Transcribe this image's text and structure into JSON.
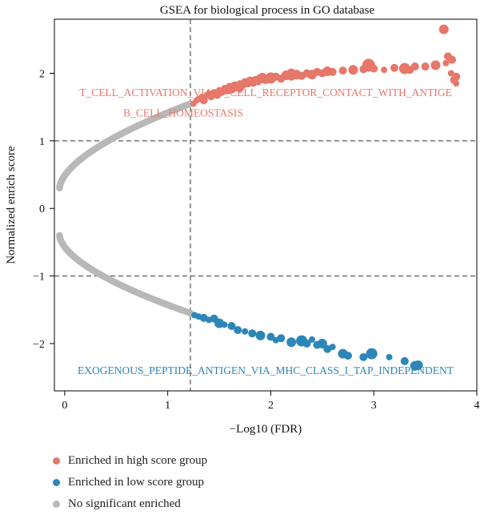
{
  "chart_data": {
    "type": "scatter",
    "title": "GSEA for biological process in GO database",
    "xlabel": "−Log10 (FDR)",
    "ylabel": "Normalized enrich score",
    "xlim": [
      -0.1,
      4.0
    ],
    "ylim": [
      -2.7,
      2.8
    ],
    "xticks": [
      0,
      1,
      2,
      3,
      4
    ],
    "yticks": [
      -2,
      -1,
      0,
      1,
      2
    ],
    "ytick_labels": [
      "−2",
      "−1",
      "0",
      "1",
      "2"
    ],
    "threshold_x": 1.22,
    "threshold_y": [
      -1.0,
      1.0
    ],
    "grid": false,
    "legend_position": "bottom-left",
    "annotations": [
      {
        "text": "T_CELL_ACTIVATION_VIA_T_CELL_RECEPTOR_CONTACT_WITH_ANTIGE",
        "x": 1.95,
        "y": 1.66,
        "series": "high"
      },
      {
        "text": "B_CELL_HOMEOSTASIS",
        "x": 1.15,
        "y": 1.36,
        "series": "high"
      },
      {
        "text": "EXOGENOUS_PEPTIDE_ANTIGEN_VIA_MHC_CLASS_I_TAP_INDEPENDENT",
        "x": 1.95,
        "y": -2.45,
        "series": "low"
      }
    ],
    "series": [
      {
        "name": "Enriched in high score group",
        "key": "high",
        "color": "#e6776b",
        "points": [
          [
            1.25,
            1.55
          ],
          [
            1.28,
            1.6
          ],
          [
            1.3,
            1.62
          ],
          [
            1.33,
            1.65
          ],
          [
            1.35,
            1.6
          ],
          [
            1.38,
            1.68
          ],
          [
            1.4,
            1.7
          ],
          [
            1.42,
            1.66
          ],
          [
            1.45,
            1.72
          ],
          [
            1.48,
            1.68
          ],
          [
            1.5,
            1.75
          ],
          [
            1.53,
            1.73
          ],
          [
            1.55,
            1.78
          ],
          [
            1.58,
            1.76
          ],
          [
            1.6,
            1.8
          ],
          [
            1.63,
            1.75
          ],
          [
            1.65,
            1.82
          ],
          [
            1.68,
            1.8
          ],
          [
            1.7,
            1.85
          ],
          [
            1.73,
            1.83
          ],
          [
            1.75,
            1.87
          ],
          [
            1.78,
            1.84
          ],
          [
            1.8,
            1.88
          ],
          [
            1.83,
            1.86
          ],
          [
            1.85,
            1.9
          ],
          [
            1.88,
            1.87
          ],
          [
            1.9,
            1.92
          ],
          [
            1.95,
            1.9
          ],
          [
            2.0,
            1.93
          ],
          [
            2.05,
            1.95
          ],
          [
            2.1,
            1.92
          ],
          [
            2.15,
            1.97
          ],
          [
            2.2,
            1.95
          ],
          [
            2.25,
            1.98
          ],
          [
            2.3,
            1.96
          ],
          [
            2.35,
            2.0
          ],
          [
            2.4,
            1.98
          ],
          [
            2.45,
            2.02
          ],
          [
            2.5,
            2.0
          ],
          [
            2.55,
            2.03
          ],
          [
            2.6,
            2.02
          ],
          [
            2.7,
            2.04
          ],
          [
            2.8,
            2.05
          ],
          [
            2.9,
            2.06
          ],
          [
            3.0,
            2.07
          ],
          [
            3.1,
            2.05
          ],
          [
            3.2,
            2.08
          ],
          [
            3.3,
            2.07
          ],
          [
            3.4,
            2.1
          ],
          [
            3.5,
            2.1
          ],
          [
            3.6,
            2.12
          ],
          [
            3.7,
            2.15
          ],
          [
            3.75,
            2.0
          ],
          [
            3.78,
            1.9
          ],
          [
            3.8,
            1.95
          ],
          [
            3.72,
            2.25
          ],
          [
            3.68,
            2.65
          ],
          [
            3.76,
            2.2
          ],
          [
            3.8,
            1.85
          ],
          [
            3.35,
            2.05
          ],
          [
            2.95,
            2.12
          ],
          [
            2.2,
            2.0
          ],
          [
            1.7,
            1.78
          ],
          [
            1.92,
            1.95
          ]
        ],
        "sizes_note": "marker size varies",
        "point_sizes": [
          4,
          4,
          4,
          4,
          5,
          4,
          4,
          5,
          4,
          5,
          4,
          5,
          4,
          6,
          5,
          4,
          5,
          6,
          4,
          5,
          5,
          4,
          6,
          5,
          5,
          4,
          6,
          5,
          7,
          5,
          5,
          6,
          5,
          6,
          5,
          5,
          6,
          5,
          5,
          6,
          5,
          5,
          6,
          5,
          5,
          4,
          5,
          7,
          5,
          5,
          6,
          4,
          4,
          5,
          5,
          5,
          6,
          5,
          4,
          5,
          8,
          6,
          5,
          5
        ]
      },
      {
        "name": "Enriched in low score group",
        "key": "low",
        "color": "#2e86b8",
        "points": [
          [
            1.26,
            -1.58
          ],
          [
            1.3,
            -1.6
          ],
          [
            1.35,
            -1.62
          ],
          [
            1.4,
            -1.65
          ],
          [
            1.45,
            -1.63
          ],
          [
            1.5,
            -1.7
          ],
          [
            1.55,
            -1.72
          ],
          [
            1.62,
            -1.74
          ],
          [
            1.68,
            -1.8
          ],
          [
            1.75,
            -1.82
          ],
          [
            1.82,
            -1.85
          ],
          [
            1.9,
            -1.88
          ],
          [
            2.0,
            -1.9
          ],
          [
            2.05,
            -1.95
          ],
          [
            2.1,
            -1.92
          ],
          [
            2.2,
            -1.98
          ],
          [
            2.3,
            -1.96
          ],
          [
            2.35,
            -2.0
          ],
          [
            2.4,
            -1.94
          ],
          [
            2.45,
            -2.02
          ],
          [
            2.5,
            -2.0
          ],
          [
            2.55,
            -2.08
          ],
          [
            2.6,
            -2.05
          ],
          [
            2.7,
            -2.15
          ],
          [
            2.75,
            -2.18
          ],
          [
            2.9,
            -2.2
          ],
          [
            2.98,
            -2.15
          ],
          [
            3.15,
            -2.2
          ],
          [
            3.3,
            -2.26
          ],
          [
            3.4,
            -2.33
          ],
          [
            3.43,
            -2.32
          ]
        ],
        "point_sizes": [
          4,
          4,
          5,
          4,
          5,
          6,
          4,
          5,
          5,
          4,
          5,
          6,
          5,
          4,
          5,
          6,
          7,
          5,
          4,
          5,
          6,
          5,
          4,
          6,
          5,
          5,
          7,
          4,
          5,
          6,
          6
        ]
      },
      {
        "name": "No significant enriched",
        "key": "ns",
        "color": "#b8b8b8",
        "upper_curve": {
          "x_min": -0.05,
          "x_max": 1.22,
          "y_start": 0.3,
          "y_end": 1.55
        },
        "lower_curve": {
          "x_min": -0.05,
          "x_max": 1.22,
          "y_start": -0.4,
          "y_end": -1.55
        }
      }
    ]
  },
  "legend": [
    {
      "label": "Enriched in high score group",
      "color": "#e6776b"
    },
    {
      "label": "Enriched in low score group",
      "color": "#2e86b8"
    },
    {
      "label": "No significant enriched",
      "color": "#b8b8b8"
    }
  ]
}
